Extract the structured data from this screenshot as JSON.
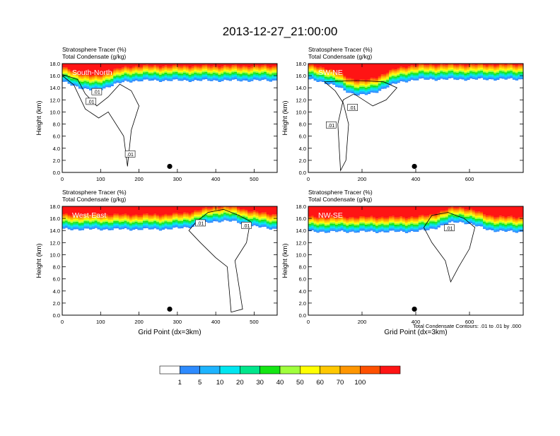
{
  "title": "2013-12-27_21:00:00",
  "footnote": "Total Condensate Contours: .01 to .01 by .000",
  "colorbar": {
    "colors": [
      "#ffffff",
      "#2e8bff",
      "#1eb4ff",
      "#00e6f0",
      "#00e68c",
      "#14e614",
      "#a0ff3c",
      "#ffff00",
      "#ffc800",
      "#ff9600",
      "#ff5000",
      "#ff1414"
    ],
    "labels": [
      "1",
      "5",
      "10",
      "20",
      "30",
      "40",
      "50",
      "60",
      "70",
      "100"
    ]
  },
  "chart_data": [
    {
      "type": "heatmap",
      "panel_label": "South-North",
      "title_line1": "Stratosphere Tracer   (%)",
      "title_line2": "Total Condensate   (g/kg)",
      "ylabel": "Height (km)",
      "xlabel": "",
      "xlim": [
        0,
        560
      ],
      "ylim": [
        0,
        18
      ],
      "xticks": [
        "0",
        "100",
        "200",
        "300",
        "400",
        "500"
      ],
      "xtick_values": [
        0,
        100,
        200,
        300,
        400,
        500
      ],
      "yticks": [
        "0.0",
        "2.0",
        "4.0",
        "6.0",
        "8.0",
        "10.0",
        "12.0",
        "14.0",
        "16.0",
        "18.0"
      ],
      "marker": {
        "x": 280,
        "y": 1.0
      },
      "contour_labels": [
        {
          "text": ".01",
          "x": 90,
          "y": 13.3
        },
        {
          "text": ".01",
          "x": 75,
          "y": 11.7
        },
        {
          "text": ".01",
          "x": 177,
          "y": 3.0
        }
      ],
      "dip": {
        "center": 80,
        "width": 60,
        "depth": 1.6
      },
      "tracer_base_km": 15.2,
      "cloud_profile": [
        [
          0,
          16.2
        ],
        [
          40,
          15.4
        ],
        [
          60,
          13.0
        ],
        [
          90,
          11.0
        ],
        [
          120,
          12.5
        ],
        [
          150,
          14.6
        ],
        [
          180,
          13.5
        ],
        [
          200,
          11.0
        ],
        [
          180,
          7.0
        ],
        [
          170,
          1.0
        ],
        [
          160,
          6.0
        ],
        [
          120,
          10.0
        ],
        [
          95,
          9.0
        ],
        [
          60,
          10.5
        ],
        [
          30,
          14.5
        ],
        [
          0,
          16.0
        ]
      ]
    },
    {
      "type": "heatmap",
      "panel_label": "SW-NE",
      "title_line1": "Stratosphere Tracer   (%)",
      "title_line2": "Total Condensate   (g/kg)",
      "ylabel": "Height (km)",
      "xlabel": "",
      "xlim": [
        0,
        800
      ],
      "ylim": [
        0,
        18
      ],
      "xticks": [
        "0",
        "200",
        "400",
        "600"
      ],
      "xtick_values": [
        0,
        200,
        400,
        600
      ],
      "yticks": [
        "0.0",
        "2.0",
        "4.0",
        "6.0",
        "8.0",
        "10.0",
        "12.0",
        "14.0",
        "16.0",
        "18.0"
      ],
      "marker": {
        "x": 395,
        "y": 1.0
      },
      "contour_labels": [
        {
          "text": ".01",
          "x": 165,
          "y": 10.7
        },
        {
          "text": ".01",
          "x": 85,
          "y": 7.8
        }
      ],
      "dip": {
        "center": 200,
        "width": 110,
        "depth": 2.6
      },
      "tracer_base_km": 15.4,
      "cloud_profile": [
        [
          60,
          15.0
        ],
        [
          100,
          13.5
        ],
        [
          130,
          11.5
        ],
        [
          150,
          8.0
        ],
        [
          140,
          2.0
        ],
        [
          120,
          0.3
        ],
        [
          110,
          8.0
        ],
        [
          130,
          12.0
        ],
        [
          170,
          13.0
        ],
        [
          240,
          11.0
        ],
        [
          290,
          12.0
        ],
        [
          330,
          14.0
        ],
        [
          280,
          15.0
        ],
        [
          180,
          15.2
        ],
        [
          60,
          15.0
        ]
      ]
    },
    {
      "type": "heatmap",
      "panel_label": "West-East",
      "title_line1": "Stratosphere Tracer   (%)",
      "title_line2": "Total Condensate   (g/kg)",
      "ylabel": "Height (km)",
      "xlabel": "Grid Point (dx=3km)",
      "xlim": [
        0,
        560
      ],
      "ylim": [
        0,
        18
      ],
      "xticks": [
        "0",
        "100",
        "200",
        "300",
        "400",
        "500"
      ],
      "xtick_values": [
        0,
        100,
        200,
        300,
        400,
        500
      ],
      "yticks": [
        "0.0",
        "2.0",
        "4.0",
        "6.0",
        "8.0",
        "10.0",
        "12.0",
        "14.0",
        "16.0",
        "18.0"
      ],
      "marker": {
        "x": 280,
        "y": 1.0
      },
      "contour_labels": [
        {
          "text": ".01",
          "x": 360,
          "y": 15.2
        },
        {
          "text": ".01",
          "x": 480,
          "y": 14.8
        }
      ],
      "dip": {
        "center": 420,
        "width": 80,
        "depth": -1.4
      },
      "tracer_base_km": 14.2,
      "cloud_profile": [
        [
          350,
          15.5
        ],
        [
          380,
          17.0
        ],
        [
          420,
          17.5
        ],
        [
          460,
          16.5
        ],
        [
          490,
          15.5
        ],
        [
          480,
          12.0
        ],
        [
          450,
          9.0
        ],
        [
          470,
          1.0
        ],
        [
          440,
          0.5
        ],
        [
          430,
          8.0
        ],
        [
          400,
          9.5
        ],
        [
          360,
          12.0
        ],
        [
          330,
          14.0
        ],
        [
          350,
          15.5
        ]
      ]
    },
    {
      "type": "heatmap",
      "panel_label": "NW-SE",
      "title_line1": "Stratosphere Tracer   (%)",
      "title_line2": "Total Condensate   (g/kg)",
      "ylabel": "Height (km)",
      "xlabel": "Grid Point (dx=3km)",
      "xlim": [
        0,
        800
      ],
      "ylim": [
        0,
        18
      ],
      "xticks": [
        "0",
        "200",
        "400",
        "600"
      ],
      "xtick_values": [
        0,
        200,
        400,
        600
      ],
      "yticks": [
        "0.0",
        "2.0",
        "4.0",
        "6.0",
        "8.0",
        "10.0",
        "12.0",
        "14.0",
        "16.0",
        "18.0"
      ],
      "marker": {
        "x": 395,
        "y": 1.0
      },
      "contour_labels": [
        {
          "text": ".01",
          "x": 525,
          "y": 14.4
        }
      ],
      "dip": {
        "center": 560,
        "width": 90,
        "depth": -1.6
      },
      "tracer_base_km": 13.8,
      "cloud_profile": [
        [
          430,
          14.5
        ],
        [
          460,
          16.5
        ],
        [
          520,
          17.0
        ],
        [
          580,
          16.0
        ],
        [
          620,
          14.5
        ],
        [
          600,
          11.0
        ],
        [
          560,
          8.0
        ],
        [
          530,
          5.5
        ],
        [
          510,
          9.0
        ],
        [
          460,
          12.0
        ],
        [
          430,
          14.5
        ]
      ]
    }
  ]
}
